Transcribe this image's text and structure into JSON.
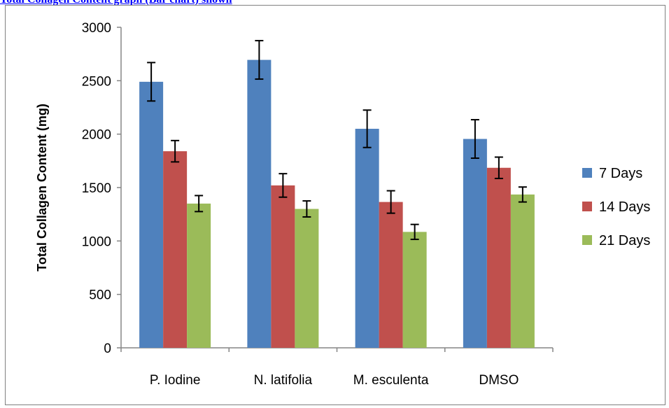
{
  "header_link": {
    "text": "Total Collagen Content graph (Bar chart) shown"
  },
  "chart_data": {
    "type": "bar",
    "categories": [
      "P. Iodine",
      "N. latifolia",
      "M. esculenta",
      "DMSO"
    ],
    "series": [
      {
        "name": "7 Days",
        "color": "#4f81bd",
        "values": [
          2490,
          2695,
          2050,
          1955
        ],
        "errors": [
          180,
          180,
          175,
          180
        ]
      },
      {
        "name": "14 Days",
        "color": "#c0504d",
        "values": [
          1840,
          1520,
          1365,
          1685
        ],
        "errors": [
          100,
          110,
          105,
          100
        ]
      },
      {
        "name": "21 Days",
        "color": "#9bbb59",
        "values": [
          1350,
          1300,
          1085,
          1435
        ],
        "errors": [
          75,
          75,
          70,
          70
        ]
      }
    ],
    "title": "",
    "xlabel": "",
    "ylabel": "Total Collagen Content (mg)",
    "ylim": [
      0,
      3000
    ],
    "yticks": [
      0,
      500,
      1000,
      1500,
      2000,
      2500,
      3000
    ],
    "grid": false,
    "legend_position": "right"
  }
}
